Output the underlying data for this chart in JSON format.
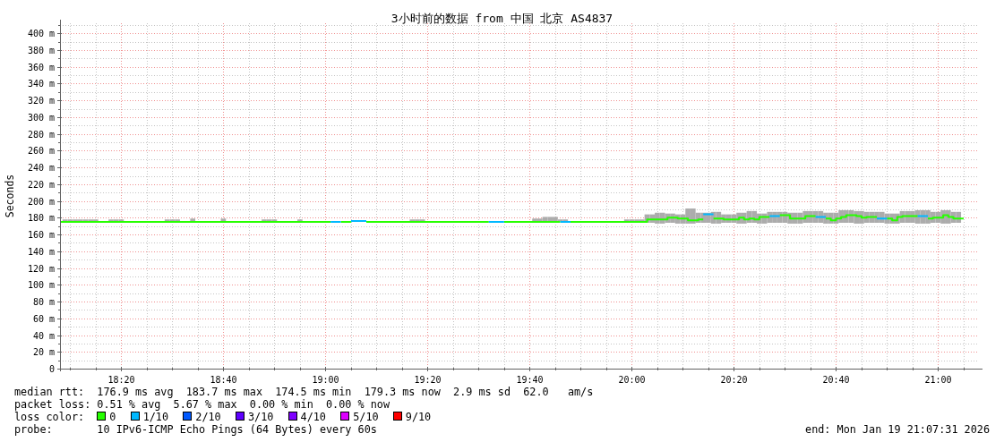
{
  "chart_data": {
    "type": "line",
    "title": "3小时前的数据 from 中国 北京 AS4837",
    "ylabel": "Seconds",
    "xlim": [
      "2026-01-19T18:08",
      "2026-01-19T21:08"
    ],
    "ylim": [
      0,
      412
    ],
    "xticks": [
      {
        "value": "2026-01-19T18:10",
        "label": null
      },
      {
        "value": "2026-01-19T18:15",
        "label": null
      },
      {
        "value": "2026-01-19T18:20",
        "label": "18:20"
      },
      {
        "value": "2026-01-19T18:25",
        "label": null
      },
      {
        "value": "2026-01-19T18:30",
        "label": null
      },
      {
        "value": "2026-01-19T18:35",
        "label": null
      },
      {
        "value": "2026-01-19T18:40",
        "label": "18:40"
      },
      {
        "value": "2026-01-19T18:45",
        "label": null
      },
      {
        "value": "2026-01-19T18:50",
        "label": null
      },
      {
        "value": "2026-01-19T18:55",
        "label": null
      },
      {
        "value": "2026-01-19T19:00",
        "label": "19:00"
      },
      {
        "value": "2026-01-19T19:05",
        "label": null
      },
      {
        "value": "2026-01-19T19:10",
        "label": null
      },
      {
        "value": "2026-01-19T19:15",
        "label": null
      },
      {
        "value": "2026-01-19T19:20",
        "label": "19:20"
      },
      {
        "value": "2026-01-19T19:25",
        "label": null
      },
      {
        "value": "2026-01-19T19:30",
        "label": null
      },
      {
        "value": "2026-01-19T19:35",
        "label": null
      },
      {
        "value": "2026-01-19T19:40",
        "label": "19:40"
      },
      {
        "value": "2026-01-19T19:45",
        "label": null
      },
      {
        "value": "2026-01-19T19:50",
        "label": null
      },
      {
        "value": "2026-01-19T19:55",
        "label": null
      },
      {
        "value": "2026-01-19T20:00",
        "label": "20:00"
      },
      {
        "value": "2026-01-19T20:05",
        "label": null
      },
      {
        "value": "2026-01-19T20:10",
        "label": null
      },
      {
        "value": "2026-01-19T20:15",
        "label": null
      },
      {
        "value": "2026-01-19T20:20",
        "label": "20:20"
      },
      {
        "value": "2026-01-19T20:25",
        "label": null
      },
      {
        "value": "2026-01-19T20:30",
        "label": null
      },
      {
        "value": "2026-01-19T20:35",
        "label": null
      },
      {
        "value": "2026-01-19T20:40",
        "label": "20:40"
      },
      {
        "value": "2026-01-19T20:45",
        "label": null
      },
      {
        "value": "2026-01-19T20:50",
        "label": null
      },
      {
        "value": "2026-01-19T20:55",
        "label": null
      },
      {
        "value": "2026-01-19T21:00",
        "label": "21:00"
      },
      {
        "value": "2026-01-19T21:05",
        "label": null
      }
    ],
    "yticks": [
      0,
      {
        "value": 10,
        "label": null
      },
      {
        "value": 20,
        "label": "20 m"
      },
      {
        "value": 30,
        "label": null
      },
      {
        "value": 40,
        "label": "40 m"
      },
      {
        "value": 50,
        "label": null
      },
      {
        "value": 60,
        "label": "60 m"
      },
      {
        "value": 70,
        "label": null
      },
      {
        "value": 80,
        "label": "80 m"
      },
      {
        "value": 90,
        "label": null
      },
      {
        "value": 100,
        "label": "100 m"
      },
      {
        "value": 110,
        "label": null
      },
      {
        "value": 120,
        "label": "120 m"
      },
      {
        "value": 130,
        "label": null
      },
      {
        "value": 140,
        "label": "140 m"
      },
      {
        "value": 150,
        "label": null
      },
      {
        "value": 160,
        "label": "160 m"
      },
      {
        "value": 170,
        "label": null
      },
      {
        "value": 180,
        "label": "180 m"
      },
      {
        "value": 190,
        "label": null
      },
      {
        "value": 200,
        "label": "200 m"
      },
      {
        "value": 210,
        "label": null
      },
      {
        "value": 220,
        "label": "220 m"
      },
      {
        "value": 230,
        "label": null
      },
      {
        "value": 240,
        "label": "240 m"
      },
      {
        "value": 250,
        "label": null
      },
      {
        "value": 260,
        "label": "260 m"
      },
      {
        "value": 270,
        "label": null
      },
      {
        "value": 280,
        "label": "280 m"
      },
      {
        "value": 290,
        "label": null
      },
      {
        "value": 300,
        "label": "300 m"
      },
      {
        "value": 310,
        "label": null
      },
      {
        "value": 320,
        "label": "320 m"
      },
      {
        "value": 330,
        "label": null
      },
      {
        "value": 340,
        "label": "340 m"
      },
      {
        "value": 350,
        "label": null
      },
      {
        "value": 360,
        "label": "360 m"
      },
      {
        "value": 370,
        "label": null
      },
      {
        "value": 380,
        "label": "380 m"
      },
      {
        "value": 390,
        "label": null
      },
      {
        "value": 400,
        "label": "400 m"
      },
      {
        "value": 410,
        "label": null
      }
    ],
    "grid": true,
    "legend": "bottom",
    "legend_title": "loss color:",
    "series": [
      {
        "type": "bar",
        "color": "#acacac",
        "x": [
          "2026-01-19T18:09",
          "2026-01-19T18:10",
          "2026-01-19T18:11",
          "2026-01-19T18:12",
          "2026-01-19T18:13",
          "2026-01-19T18:14",
          "2026-01-19T18:15",
          "2026-01-19T18:18",
          "2026-01-19T18:19",
          "2026-01-19T18:20",
          "2026-01-19T18:29",
          "2026-01-19T18:30",
          "2026-01-19T18:31",
          "2026-01-19T18:34",
          "2026-01-19T18:40",
          "2026-01-19T18:48",
          "2026-01-19T18:49",
          "2026-01-19T18:50",
          "2026-01-19T18:55",
          "2026-01-19T19:17",
          "2026-01-19T19:18",
          "2026-01-19T19:19",
          "2026-01-19T19:41",
          "2026-01-19T19:42",
          "2026-01-19T19:43",
          "2026-01-19T19:44",
          "2026-01-19T19:45",
          "2026-01-19T19:46",
          "2026-01-19T19:47",
          "2026-01-19T19:59",
          "2026-01-19T20:00",
          "2026-01-19T20:01",
          "2026-01-19T20:02",
          "2026-01-19T20:03",
          "2026-01-19T20:04",
          "2026-01-19T20:05",
          "2026-01-19T20:06",
          "2026-01-19T20:07",
          "2026-01-19T20:08",
          "2026-01-19T20:09",
          "2026-01-19T20:10",
          "2026-01-19T20:11",
          "2026-01-19T20:12",
          "2026-01-19T20:13",
          "2026-01-19T20:14",
          "2026-01-19T20:15",
          "2026-01-19T20:16",
          "2026-01-19T20:17",
          "2026-01-19T20:18",
          "2026-01-19T20:19",
          "2026-01-19T20:20",
          "2026-01-19T20:21",
          "2026-01-19T20:22",
          "2026-01-19T20:23",
          "2026-01-19T20:24",
          "2026-01-19T20:25",
          "2026-01-19T20:26",
          "2026-01-19T20:27",
          "2026-01-19T20:28",
          "2026-01-19T20:29",
          "2026-01-19T20:30",
          "2026-01-19T20:31",
          "2026-01-19T20:32",
          "2026-01-19T20:33",
          "2026-01-19T20:34",
          "2026-01-19T20:35",
          "2026-01-19T20:36",
          "2026-01-19T20:37",
          "2026-01-19T20:38",
          "2026-01-19T20:39",
          "2026-01-19T20:40",
          "2026-01-19T20:41",
          "2026-01-19T20:42",
          "2026-01-19T20:43",
          "2026-01-19T20:44",
          "2026-01-19T20:45",
          "2026-01-19T20:46",
          "2026-01-19T20:47",
          "2026-01-19T20:48",
          "2026-01-19T20:49",
          "2026-01-19T20:50",
          "2026-01-19T20:51",
          "2026-01-19T20:52",
          "2026-01-19T20:53",
          "2026-01-19T20:54",
          "2026-01-19T20:55",
          "2026-01-19T20:56",
          "2026-01-19T20:57",
          "2026-01-19T20:58",
          "2026-01-19T20:59",
          "2026-01-19T21:00",
          "2026-01-19T21:01",
          "2026-01-19T21:02",
          "2026-01-19T21:03",
          "2026-01-19T21:04"
        ],
        "base": [
          176,
          176,
          176,
          176,
          176,
          176,
          176,
          176,
          176,
          176,
          176,
          176,
          176,
          176,
          176,
          176,
          176,
          176,
          176,
          176,
          176,
          176,
          176,
          176,
          176,
          176,
          176,
          176,
          176,
          176,
          176,
          176,
          176,
          174,
          174,
          173,
          173,
          174,
          174,
          173,
          173,
          173,
          173,
          174,
          174,
          174,
          173,
          173,
          174,
          174,
          174,
          173,
          173,
          174,
          174,
          173,
          173,
          174,
          174,
          174,
          174,
          173,
          173,
          173,
          174,
          174,
          174,
          174,
          173,
          173,
          173,
          174,
          174,
          174,
          173,
          173,
          174,
          174,
          174,
          174,
          173,
          173,
          173,
          174,
          174,
          174,
          173,
          173,
          173,
          174,
          174,
          173,
          173,
          174,
          174
        ],
        "values": [
          2,
          2,
          2,
          2,
          2,
          2,
          2,
          2,
          2,
          2,
          2,
          2,
          2,
          3,
          3,
          2,
          2,
          2,
          2,
          2,
          2,
          2,
          3,
          3,
          5,
          5,
          5,
          2,
          2,
          2,
          2,
          2,
          2,
          10,
          10,
          13,
          13,
          11,
          11,
          11,
          11,
          18,
          18,
          12,
          12,
          12,
          14,
          14,
          10,
          10,
          10,
          13,
          13,
          14,
          14,
          12,
          12,
          13,
          13,
          13,
          13,
          13,
          13,
          13,
          14,
          14,
          14,
          14,
          13,
          13,
          13,
          15,
          15,
          15,
          15,
          15,
          13,
          13,
          13,
          13,
          12,
          12,
          12,
          14,
          14,
          14,
          16,
          16,
          16,
          13,
          13,
          16,
          16,
          13,
          13
        ]
      },
      {
        "name": "0",
        "color": "#26ff00",
        "x": [
          "2026-01-19T18:08",
          "2026-01-19T19:01",
          null,
          "2026-01-19T19:03",
          "2026-01-19T19:05",
          null,
          "2026-01-19T19:08",
          "2026-01-19T19:32",
          null,
          "2026-01-19T19:35",
          "2026-01-19T19:46",
          null,
          "2026-01-19T19:48",
          "2026-01-19T20:03",
          "2026-01-19T20:03",
          "2026-01-19T20:07",
          "2026-01-19T20:07",
          "2026-01-19T20:09",
          "2026-01-19T20:09",
          "2026-01-19T20:11",
          "2026-01-19T20:11",
          "2026-01-19T20:13",
          "2026-01-19T20:13",
          "2026-01-19T20:14",
          null,
          "2026-01-19T20:16",
          "2026-01-19T20:18",
          "2026-01-19T20:18",
          "2026-01-19T20:21",
          "2026-01-19T20:21",
          "2026-01-19T20:22",
          "2026-01-19T20:22",
          "2026-01-19T20:23",
          "2026-01-19T20:23",
          "2026-01-19T20:24",
          "2026-01-19T20:24",
          "2026-01-19T20:25",
          "2026-01-19T20:25",
          "2026-01-19T20:27",
          null,
          "2026-01-19T20:29",
          "2026-01-19T20:31",
          "2026-01-19T20:31",
          "2026-01-19T20:34",
          "2026-01-19T20:34",
          "2026-01-19T20:36",
          null,
          "2026-01-19T20:38",
          "2026-01-19T20:39",
          "2026-01-19T20:39",
          "2026-01-19T20:40",
          "2026-01-19T20:40",
          "2026-01-19T20:41",
          "2026-01-19T20:41",
          "2026-01-19T20:42",
          "2026-01-19T20:42",
          "2026-01-19T20:44",
          "2026-01-19T20:44",
          "2026-01-19T20:45",
          "2026-01-19T20:45",
          "2026-01-19T20:46",
          "2026-01-19T20:46",
          "2026-01-19T20:48",
          null,
          "2026-01-19T20:50",
          "2026-01-19T20:51",
          "2026-01-19T20:51",
          "2026-01-19T20:52",
          "2026-01-19T20:52",
          "2026-01-19T20:53",
          "2026-01-19T20:53",
          "2026-01-19T20:56",
          null,
          "2026-01-19T20:58",
          "2026-01-19T20:59",
          "2026-01-19T20:59",
          "2026-01-19T21:01",
          "2026-01-19T21:01",
          "2026-01-19T21:02",
          "2026-01-19T21:02",
          "2026-01-19T21:03",
          "2026-01-19T21:03",
          "2026-01-19T21:05"
        ],
        "values": [
          175,
          175,
          null,
          175,
          175,
          null,
          175,
          175,
          null,
          175,
          175,
          null,
          175,
          175,
          178,
          178,
          180,
          180,
          179,
          179,
          177,
          177,
          178,
          178,
          null,
          179,
          179,
          178,
          178,
          180,
          180,
          178,
          178,
          179,
          179,
          178,
          178,
          181,
          181,
          null,
          183,
          183,
          179,
          179,
          182,
          182,
          null,
          179,
          179,
          177,
          177,
          179,
          179,
          181,
          181,
          183,
          183,
          182,
          182,
          180,
          180,
          181,
          181,
          null,
          179,
          179,
          177,
          177,
          181,
          181,
          182,
          182,
          null,
          179,
          179,
          180,
          180,
          183,
          183,
          181,
          181,
          179,
          179
        ]
      },
      {
        "name": "1/10",
        "color": "#00b8ff",
        "x": [
          "2026-01-19T19:01",
          "2026-01-19T19:03",
          null,
          "2026-01-19T19:05",
          "2026-01-19T19:08",
          null,
          "2026-01-19T19:32",
          "2026-01-19T19:35",
          null,
          "2026-01-19T19:46",
          "2026-01-19T19:48",
          null,
          "2026-01-19T20:14",
          "2026-01-19T20:16",
          null,
          "2026-01-19T20:27",
          "2026-01-19T20:29",
          null,
          "2026-01-19T20:36",
          "2026-01-19T20:38",
          null,
          "2026-01-19T20:48",
          "2026-01-19T20:50",
          null,
          "2026-01-19T20:56",
          "2026-01-19T20:58"
        ],
        "values": [
          175,
          175,
          null,
          176,
          176,
          null,
          175,
          175,
          null,
          175,
          175,
          null,
          184,
          184,
          null,
          182,
          182,
          null,
          181,
          181,
          null,
          179,
          179,
          null,
          182,
          182
        ]
      },
      {
        "name": "2/10",
        "color": "#0059ff"
      },
      {
        "name": "3/10",
        "color": "#5e00ff"
      },
      {
        "name": "4/10",
        "color": "#7e00ff"
      },
      {
        "name": "5/10",
        "color": "#dd00ff"
      },
      {
        "name": "9/10",
        "color": "#ff0000"
      }
    ],
    "annotations": [
      "median rtt:  176.9 ms avg  183.7 ms max  174.5 ms min  179.3 ms now  2.9 ms sd  62.0   am/s",
      "packet loss: 0.51 % avg  5.67 % max  0.00 % min  0.00 % now",
      "probe:       10 IPv6-ICMP Echo Pings (64 Bytes) every 60s",
      "end: Mon Jan 19 21:07:31 2026"
    ]
  }
}
